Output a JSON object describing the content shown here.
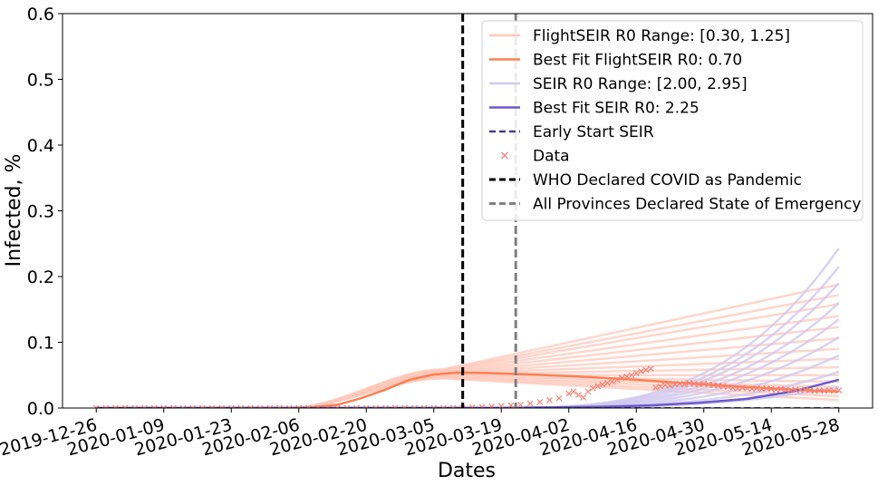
{
  "chart_data": {
    "type": "line",
    "xlabel": "Dates",
    "ylabel": "Infected, %",
    "ylim": [
      0,
      0.6
    ],
    "yticks": [
      0.0,
      0.1,
      0.2,
      0.3,
      0.4,
      0.5,
      0.6
    ],
    "ytick_labels": [
      "0.0",
      "0.1",
      "0.2",
      "0.3",
      "0.4",
      "0.5",
      "0.6"
    ],
    "x_start": "2019-12-26",
    "x_end": "2020-05-28",
    "xlim_days": [
      -7,
      161
    ],
    "xtick_labels": [
      "2019-12-26",
      "2020-01-09",
      "2020-01-23",
      "2020-02-06",
      "2020-02-20",
      "2020-03-05",
      "2020-03-19",
      "2020-04-02",
      "2020-04-16",
      "2020-04-30",
      "2020-05-14",
      "2020-05-28"
    ],
    "xtick_days": [
      0,
      14,
      28,
      42,
      56,
      70,
      84,
      98,
      112,
      126,
      140,
      154
    ],
    "colors": {
      "flight": "#ff7f50",
      "flight_range": "#ffc8bb",
      "seir": "#6a5acd",
      "seir_range": "#cfc8f0",
      "early": "#483d8b",
      "data": "#fa8072",
      "who": "#000000",
      "provinces": "#808080"
    },
    "vlines": [
      {
        "name": "WHO Declared COVID as Pandemic",
        "date": "2020-03-11",
        "day": 76,
        "color": "#000000"
      },
      {
        "name": "All Provinces Declared State of Emergency",
        "date": "2020-03-22",
        "day": 87,
        "color": "#808080"
      }
    ],
    "flightseir_range": {
      "label": "FlightSEIR R0 Range: [0.30, 1.25]",
      "end_values": [
        0.012,
        0.018,
        0.025,
        0.032,
        0.04,
        0.05,
        0.062,
        0.075,
        0.09,
        0.106,
        0.123,
        0.14,
        0.158,
        0.172,
        0.188
      ]
    },
    "best_flight": {
      "label": "Best Fit FlightSEIR R0: 0.70",
      "points": [
        [
          0,
          0.0
        ],
        [
          40,
          0.0002
        ],
        [
          45,
          0.001
        ],
        [
          50,
          0.005
        ],
        [
          55,
          0.015
        ],
        [
          60,
          0.028
        ],
        [
          65,
          0.043
        ],
        [
          70,
          0.051
        ],
        [
          75,
          0.054
        ],
        [
          80,
          0.0535
        ],
        [
          90,
          0.051
        ],
        [
          100,
          0.048
        ],
        [
          110,
          0.044
        ],
        [
          120,
          0.039
        ],
        [
          130,
          0.034
        ],
        [
          140,
          0.03
        ],
        [
          150,
          0.026
        ],
        [
          154,
          0.025
        ]
      ]
    },
    "seir_range": {
      "label": "SEIR R0 Range: [2.00, 2.95]",
      "end_values": [
        0.032,
        0.055,
        0.08,
        0.108,
        0.135,
        0.16,
        0.19,
        0.215,
        0.243
      ]
    },
    "best_seir": {
      "label": "Best Fit SEIR R0: 2.25",
      "points": [
        [
          0,
          0.0
        ],
        [
          85,
          0.0003
        ],
        [
          95,
          0.001
        ],
        [
          105,
          0.002
        ],
        [
          115,
          0.004
        ],
        [
          125,
          0.008
        ],
        [
          135,
          0.014
        ],
        [
          145,
          0.026
        ],
        [
          154,
          0.043
        ]
      ]
    },
    "early_start": {
      "label": "Early Start SEIR",
      "points": [
        [
          0,
          0.0
        ],
        [
          154,
          0.0
        ]
      ]
    },
    "data_series": {
      "label": "Data",
      "points": [
        [
          0,
          0.0
        ],
        [
          2,
          0.0
        ],
        [
          4,
          0.0
        ],
        [
          6,
          0.0
        ],
        [
          8,
          0.0
        ],
        [
          10,
          0.0
        ],
        [
          12,
          0.0
        ],
        [
          14,
          0.0
        ],
        [
          16,
          0.0
        ],
        [
          18,
          0.0
        ],
        [
          20,
          0.0
        ],
        [
          22,
          0.0
        ],
        [
          24,
          0.0
        ],
        [
          26,
          0.0
        ],
        [
          28,
          0.0
        ],
        [
          30,
          0.0
        ],
        [
          32,
          0.0
        ],
        [
          34,
          0.0
        ],
        [
          36,
          0.0
        ],
        [
          38,
          0.0
        ],
        [
          40,
          0.0
        ],
        [
          42,
          0.0
        ],
        [
          44,
          0.0
        ],
        [
          46,
          0.0
        ],
        [
          48,
          0.0
        ],
        [
          50,
          0.0
        ],
        [
          52,
          0.0
        ],
        [
          54,
          0.0
        ],
        [
          56,
          0.0
        ],
        [
          58,
          0.0
        ],
        [
          60,
          0.0
        ],
        [
          62,
          0.0
        ],
        [
          64,
          0.0
        ],
        [
          66,
          0.0
        ],
        [
          68,
          0.0
        ],
        [
          70,
          0.0
        ],
        [
          72,
          0.0
        ],
        [
          74,
          0.0
        ],
        [
          76,
          0.0005
        ],
        [
          78,
          0.001
        ],
        [
          80,
          0.0015
        ],
        [
          82,
          0.002
        ],
        [
          84,
          0.003
        ],
        [
          86,
          0.004
        ],
        [
          88,
          0.005
        ],
        [
          90,
          0.007
        ],
        [
          92,
          0.009
        ],
        [
          94,
          0.012
        ],
        [
          96,
          0.015
        ],
        [
          98,
          0.022
        ],
        [
          99,
          0.025
        ],
        [
          100,
          0.02
        ],
        [
          101,
          0.016
        ],
        [
          102,
          0.025
        ],
        [
          103,
          0.03
        ],
        [
          104,
          0.033
        ],
        [
          105,
          0.036
        ],
        [
          106,
          0.038
        ],
        [
          107,
          0.04
        ],
        [
          108,
          0.043
        ],
        [
          109,
          0.046
        ],
        [
          110,
          0.048
        ],
        [
          111,
          0.05
        ],
        [
          112,
          0.053
        ],
        [
          113,
          0.056
        ],
        [
          114,
          0.058
        ],
        [
          115,
          0.06
        ],
        [
          116,
          0.031
        ],
        [
          117,
          0.033
        ],
        [
          118,
          0.035
        ],
        [
          119,
          0.034
        ],
        [
          120,
          0.036
        ],
        [
          121,
          0.037
        ],
        [
          122,
          0.036
        ],
        [
          123,
          0.038
        ],
        [
          124,
          0.037
        ],
        [
          125,
          0.036
        ],
        [
          126,
          0.037
        ],
        [
          127,
          0.036
        ],
        [
          128,
          0.035
        ],
        [
          129,
          0.034
        ],
        [
          130,
          0.033
        ],
        [
          131,
          0.032
        ],
        [
          132,
          0.031
        ],
        [
          133,
          0.03
        ],
        [
          134,
          0.031
        ],
        [
          135,
          0.03
        ],
        [
          136,
          0.029
        ],
        [
          137,
          0.03
        ],
        [
          138,
          0.029
        ],
        [
          139,
          0.03
        ],
        [
          140,
          0.029
        ],
        [
          141,
          0.028
        ],
        [
          142,
          0.029
        ],
        [
          143,
          0.028
        ],
        [
          144,
          0.027
        ],
        [
          145,
          0.028
        ],
        [
          146,
          0.027
        ],
        [
          147,
          0.028
        ],
        [
          148,
          0.027
        ],
        [
          149,
          0.026
        ],
        [
          150,
          0.027
        ],
        [
          151,
          0.026
        ],
        [
          152,
          0.027
        ],
        [
          153,
          0.026
        ],
        [
          154,
          0.027
        ]
      ]
    },
    "legend": {
      "position": "top-right",
      "entries": [
        {
          "label": "FlightSEIR R0 Range: [0.30, 1.25]",
          "style": "range-flight"
        },
        {
          "label": "Best Fit FlightSEIR R0: 0.70",
          "style": "best-flight"
        },
        {
          "label": "SEIR R0 Range: [2.00, 2.95]",
          "style": "range-seir"
        },
        {
          "label": "Best Fit SEIR R0: 2.25",
          "style": "best-seir"
        },
        {
          "label": "Early Start SEIR",
          "style": "early"
        },
        {
          "label": "Data",
          "style": "data"
        },
        {
          "label": "WHO Declared COVID as Pandemic",
          "style": "who"
        },
        {
          "label": "All Provinces Declared State of Emergency",
          "style": "provinces"
        }
      ]
    }
  }
}
